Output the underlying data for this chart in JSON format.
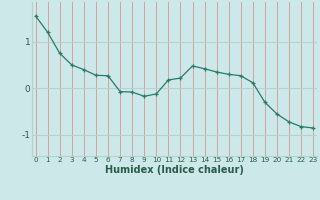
{
  "x": [
    0,
    1,
    2,
    3,
    4,
    5,
    6,
    7,
    8,
    9,
    10,
    11,
    12,
    13,
    14,
    15,
    16,
    17,
    18,
    19,
    20,
    21,
    22,
    23
  ],
  "y": [
    1.55,
    1.2,
    0.75,
    0.5,
    0.4,
    0.28,
    0.27,
    -0.07,
    -0.08,
    -0.17,
    -0.12,
    0.18,
    0.22,
    0.48,
    0.42,
    0.35,
    0.3,
    0.27,
    0.12,
    -0.3,
    -0.55,
    -0.72,
    -0.82,
    -0.85
  ],
  "xlabel": "Humidex (Indice chaleur)",
  "ylim": [
    -1.45,
    1.85
  ],
  "xlim": [
    -0.3,
    23.3
  ],
  "bg_color": "#cce8e8",
  "vgrid_color": "#d4a0a0",
  "hgrid_color": "#b8d0d0",
  "line_color": "#2a7a6a",
  "marker_color": "#2a7a6a",
  "yticks": [
    -1,
    0,
    1
  ],
  "ytick_labels": [
    "-1",
    "0",
    "1"
  ],
  "xticks": [
    0,
    1,
    2,
    3,
    4,
    5,
    6,
    7,
    8,
    9,
    10,
    11,
    12,
    13,
    14,
    15,
    16,
    17,
    18,
    19,
    20,
    21,
    22,
    23
  ],
  "xlabel_color": "#2a5a4a",
  "tick_color": "#2a5a4a",
  "xlabel_fontsize": 7.0,
  "xtick_fontsize": 5.2,
  "ytick_fontsize": 6.5
}
